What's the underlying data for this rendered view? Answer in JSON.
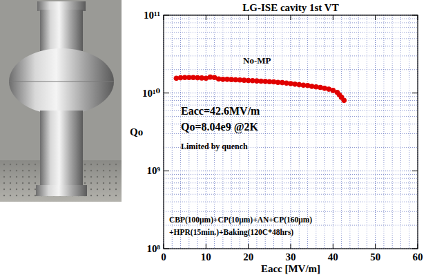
{
  "chart_data": {
    "type": "scatter",
    "title": "LG-ISE cavity 1st VT",
    "x_label": "Eacc [MV/m]",
    "y_label": "Qo",
    "x": [
      3,
      4,
      5,
      6,
      7,
      8,
      9,
      10,
      11,
      12,
      13,
      14,
      15,
      16,
      17,
      18,
      19,
      20,
      21,
      22,
      23,
      24,
      25,
      26,
      27,
      28,
      29,
      30,
      31,
      32,
      33,
      34,
      35,
      36,
      37,
      38,
      39,
      40,
      41,
      41.5,
      42,
      42.6
    ],
    "values": [
      15500000000,
      15700000000,
      15800000000,
      15800000000,
      15800000000,
      15700000000,
      15600000000,
      15500000000,
      16000000000,
      15800000000,
      15200000000,
      15000000000,
      15000000000,
      14900000000,
      14800000000,
      14700000000,
      14600000000,
      14500000000,
      14400000000,
      14300000000,
      14200000000,
      14100000000,
      14000000000,
      13900000000,
      13700000000,
      13600000000,
      13400000000,
      13200000000,
      13000000000,
      12800000000,
      12600000000,
      12500000000,
      12200000000,
      12000000000,
      11800000000,
      11500000000,
      11200000000,
      10800000000,
      10200000000,
      9500000000,
      8800000000,
      8040000000
    ],
    "color": "#e00000",
    "marker": "circle",
    "log": "y",
    "grid": true,
    "xlim": [
      0,
      60
    ],
    "xticks": [
      0,
      10,
      20,
      30,
      40,
      50,
      60
    ],
    "ylim": [
      100000000,
      100000000000
    ],
    "yticks": [
      {
        "value": 100000000,
        "label": "10⁸"
      },
      {
        "value": 1000000000,
        "label": "10⁹"
      },
      {
        "value": 10000000000,
        "label": "10¹⁰"
      },
      {
        "value": 100000000000,
        "label": "10¹¹"
      }
    ],
    "annotations": [
      "No-MP",
      "Eacc=42.6MV/m",
      "Qo=8.04e9 @2K",
      "Limited by quench",
      "CBP(100μm)+CP(10μm)+AN+CP(160μm)",
      "+HPR(15min.)+Baking(120C*48hrs)"
    ]
  }
}
